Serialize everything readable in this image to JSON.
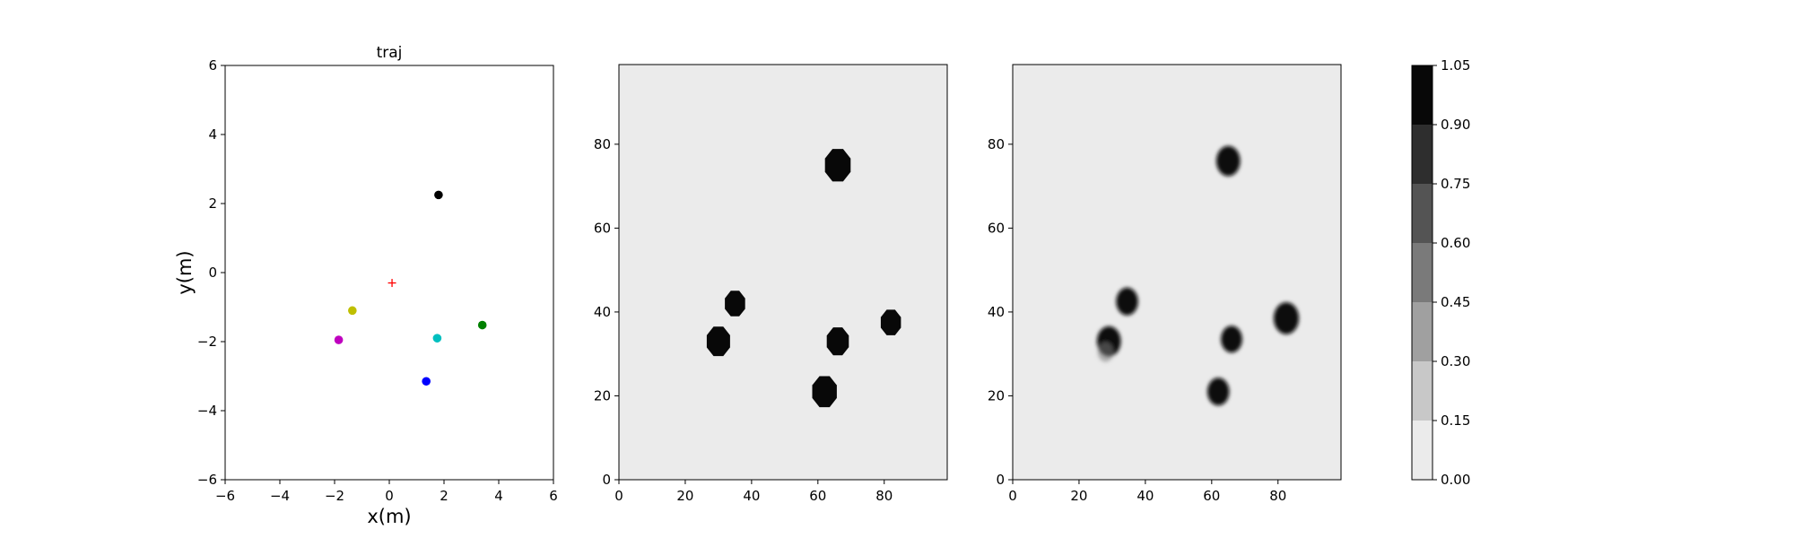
{
  "chart_data": [
    {
      "type": "scatter",
      "title": "traj",
      "xlabel": "x(m)",
      "ylabel": "y(m)",
      "xlim": [
        -6,
        6
      ],
      "ylim": [
        -6,
        6
      ],
      "xticks": [
        -6,
        -4,
        -2,
        0,
        2,
        4,
        6
      ],
      "yticks": [
        -6,
        -4,
        -2,
        0,
        2,
        4,
        6
      ],
      "grid": false,
      "points": [
        {
          "x": 1.8,
          "y": 2.25,
          "color": "#000000",
          "marker": "circle"
        },
        {
          "x": -1.35,
          "y": -1.1,
          "color": "#bfbf00",
          "marker": "circle"
        },
        {
          "x": -1.85,
          "y": -1.95,
          "color": "#bf00bf",
          "marker": "circle"
        },
        {
          "x": 1.75,
          "y": -1.9,
          "color": "#00bfbf",
          "marker": "circle"
        },
        {
          "x": 3.4,
          "y": -1.52,
          "color": "#008000",
          "marker": "circle"
        },
        {
          "x": 1.35,
          "y": -3.15,
          "color": "#0000ff",
          "marker": "circle"
        },
        {
          "x": 0.1,
          "y": -0.3,
          "color": "#ff0000",
          "marker": "plus"
        }
      ]
    },
    {
      "type": "heatmap",
      "title": "",
      "xlabel": "",
      "ylabel": "",
      "xlim": [
        0,
        99
      ],
      "ylim": [
        0,
        99
      ],
      "xticks": [
        0,
        20,
        40,
        60,
        80
      ],
      "yticks": [
        0,
        20,
        40,
        60,
        80
      ],
      "background_value": 0.05,
      "blobs": [
        {
          "x": 66,
          "y": 75,
          "r": 4.2,
          "value": 1.0
        },
        {
          "x": 35,
          "y": 42,
          "r": 3.3,
          "value": 1.0
        },
        {
          "x": 30,
          "y": 33,
          "r": 3.8,
          "value": 1.0
        },
        {
          "x": 66,
          "y": 33,
          "r": 3.6,
          "value": 1.0
        },
        {
          "x": 82,
          "y": 37.5,
          "r": 3.3,
          "value": 1.0
        },
        {
          "x": 62,
          "y": 21,
          "r": 4.0,
          "value": 1.0
        }
      ]
    },
    {
      "type": "heatmap",
      "title": "",
      "xlabel": "",
      "ylabel": "",
      "xlim": [
        0,
        99
      ],
      "ylim": [
        0,
        99
      ],
      "xticks": [
        0,
        20,
        40,
        60,
        80
      ],
      "yticks": [
        0,
        20,
        40,
        60,
        80
      ],
      "background_value": 0.05,
      "blobs": [
        {
          "x": 65,
          "y": 76,
          "r": 3.6,
          "value": 1.0
        },
        {
          "x": 34.5,
          "y": 42.5,
          "r": 3.3,
          "value": 1.0
        },
        {
          "x": 29,
          "y": 33,
          "r": 3.6,
          "value": 1.0
        },
        {
          "x": 28,
          "y": 30.5,
          "r": 2.4,
          "value": 0.5
        },
        {
          "x": 66,
          "y": 33.5,
          "r": 3.2,
          "value": 1.0
        },
        {
          "x": 82.5,
          "y": 38.5,
          "r": 3.8,
          "value": 1.0
        },
        {
          "x": 62,
          "y": 21,
          "r": 3.3,
          "value": 1.0
        }
      ]
    },
    {
      "type": "colorbar",
      "levels": [
        0.0,
        0.15,
        0.3,
        0.45,
        0.6,
        0.75,
        0.9,
        1.05
      ],
      "tick_labels": [
        "0.00",
        "0.15",
        "0.30",
        "0.45",
        "0.60",
        "0.75",
        "0.90",
        "1.05"
      ],
      "colors": [
        "#ebebeb",
        "#c8c8c8",
        "#a0a0a0",
        "#7a7a7a",
        "#545454",
        "#2e2e2e",
        "#080808"
      ]
    }
  ]
}
